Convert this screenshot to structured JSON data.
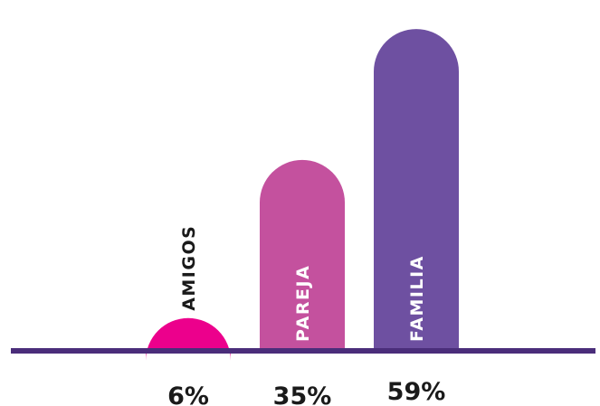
{
  "chart_data": {
    "type": "bar",
    "categories": [
      "AMIGOS",
      "PAREJA",
      "FAMILIA"
    ],
    "values": [
      6,
      35,
      59
    ],
    "value_labels": [
      "6%",
      "35%",
      "59%"
    ],
    "ylim": [
      0,
      62
    ],
    "grid": false,
    "title": "",
    "xlabel": "",
    "ylabel": "",
    "colors": [
      "#ec008c",
      "#c4519e",
      "#6e50a1"
    ],
    "label_colors": [
      "#1a1a1a",
      "#ffffff",
      "#ffffff"
    ],
    "baseline_color": "#4a2d7a"
  }
}
